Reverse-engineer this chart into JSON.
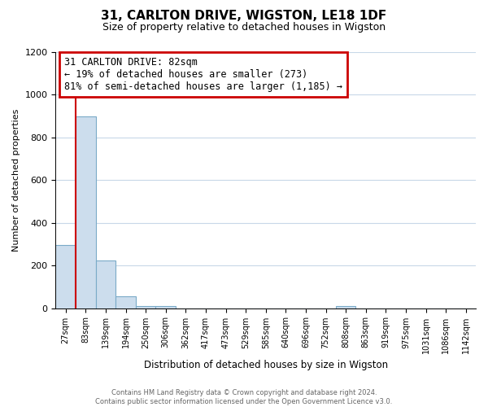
{
  "title": "31, CARLTON DRIVE, WIGSTON, LE18 1DF",
  "subtitle": "Size of property relative to detached houses in Wigston",
  "xlabel": "Distribution of detached houses by size in Wigston",
  "ylabel": "Number of detached properties",
  "bin_labels": [
    "27sqm",
    "83sqm",
    "139sqm",
    "194sqm",
    "250sqm",
    "306sqm",
    "362sqm",
    "417sqm",
    "473sqm",
    "529sqm",
    "585sqm",
    "640sqm",
    "696sqm",
    "752sqm",
    "808sqm",
    "863sqm",
    "919sqm",
    "975sqm",
    "1031sqm",
    "1086sqm",
    "1142sqm"
  ],
  "bar_heights": [
    295,
    900,
    225,
    55,
    10,
    10,
    0,
    0,
    0,
    0,
    0,
    0,
    0,
    0,
    10,
    0,
    0,
    0,
    0,
    0,
    0
  ],
  "bar_color": "#ccdded",
  "bar_edge_color": "#7aaac8",
  "annotation_box_text": "31 CARLTON DRIVE: 82sqm\n← 19% of detached houses are smaller (273)\n81% of semi-detached houses are larger (1,185) →",
  "annotation_box_color": "#ffffff",
  "annotation_box_edge_color": "#cc0000",
  "red_line_x": 1,
  "ylim": [
    0,
    1200
  ],
  "yticks": [
    0,
    200,
    400,
    600,
    800,
    1000,
    1200
  ],
  "footer_line1": "Contains HM Land Registry data © Crown copyright and database right 2024.",
  "footer_line2": "Contains public sector information licensed under the Open Government Licence v3.0.",
  "background_color": "#ffffff",
  "grid_color": "#c8d8e8"
}
